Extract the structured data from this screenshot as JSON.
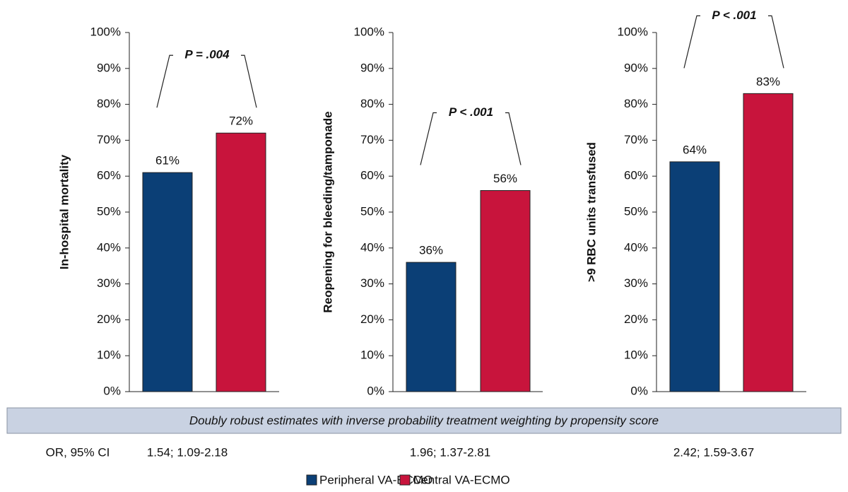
{
  "chart_data": [
    {
      "type": "bar",
      "ylabel": "In-hospital mortality",
      "annotation": "P = .004",
      "values": [
        61,
        72
      ],
      "value_labels": [
        "61%",
        "72%"
      ],
      "ylim": [
        0,
        100
      ],
      "yticks": [
        {
          "value": 0,
          "label": "0%"
        },
        {
          "value": 10,
          "label": "10%"
        },
        {
          "value": 20,
          "label": "20%"
        },
        {
          "value": 30,
          "label": "30%"
        },
        {
          "value": 40,
          "label": "40%"
        },
        {
          "value": 50,
          "label": "50%"
        },
        {
          "value": 60,
          "label": "60%"
        },
        {
          "value": 70,
          "label": "70%"
        },
        {
          "value": 80,
          "label": "80%"
        },
        {
          "value": 90,
          "label": "90%"
        },
        {
          "value": 100,
          "label": "100%"
        }
      ]
    },
    {
      "type": "bar",
      "ylabel": "Reopening for bleeding/tamponade",
      "annotation": "P < .001",
      "values": [
        36,
        56
      ],
      "value_labels": [
        "36%",
        "56%"
      ],
      "ylim": [
        0,
        100
      ],
      "yticks": [
        {
          "value": 0,
          "label": "0%"
        },
        {
          "value": 10,
          "label": "10%"
        },
        {
          "value": 20,
          "label": "20%"
        },
        {
          "value": 30,
          "label": "30%"
        },
        {
          "value": 40,
          "label": "40%"
        },
        {
          "value": 50,
          "label": "50%"
        },
        {
          "value": 60,
          "label": "60%"
        },
        {
          "value": 70,
          "label": "70%"
        },
        {
          "value": 80,
          "label": "80%"
        },
        {
          "value": 90,
          "label": "90%"
        },
        {
          "value": 100,
          "label": "100%"
        }
      ]
    },
    {
      "type": "bar",
      "ylabel": ">9 RBC units transfused",
      "annotation": "P < .001",
      "values": [
        64,
        83
      ],
      "value_labels": [
        "64%",
        "83%"
      ],
      "ylim": [
        0,
        100
      ],
      "yticks": [
        {
          "value": 0,
          "label": "0%"
        },
        {
          "value": 10,
          "label": "10%"
        },
        {
          "value": 20,
          "label": "20%"
        },
        {
          "value": 30,
          "label": "30%"
        },
        {
          "value": 40,
          "label": "40%"
        },
        {
          "value": 50,
          "label": "50%"
        },
        {
          "value": 60,
          "label": "60%"
        },
        {
          "value": 70,
          "label": "70%"
        },
        {
          "value": 80,
          "label": "80%"
        },
        {
          "value": 90,
          "label": "90%"
        },
        {
          "value": 100,
          "label": "100%"
        }
      ]
    }
  ],
  "legend": [
    {
      "name": "Peripheral VA-ECMO",
      "color": "#0b3f76"
    },
    {
      "name": "Central VA-ECMO",
      "color": "#c8143c"
    }
  ],
  "banner": "Doubly robust estimates with inverse probability treatment weighting by propensity score",
  "or_row": {
    "label": "OR, 95% CI",
    "values": [
      "1.54; 1.09-2.18",
      "1.96; 1.37-2.81",
      "2.42; 1.59-3.67"
    ]
  }
}
